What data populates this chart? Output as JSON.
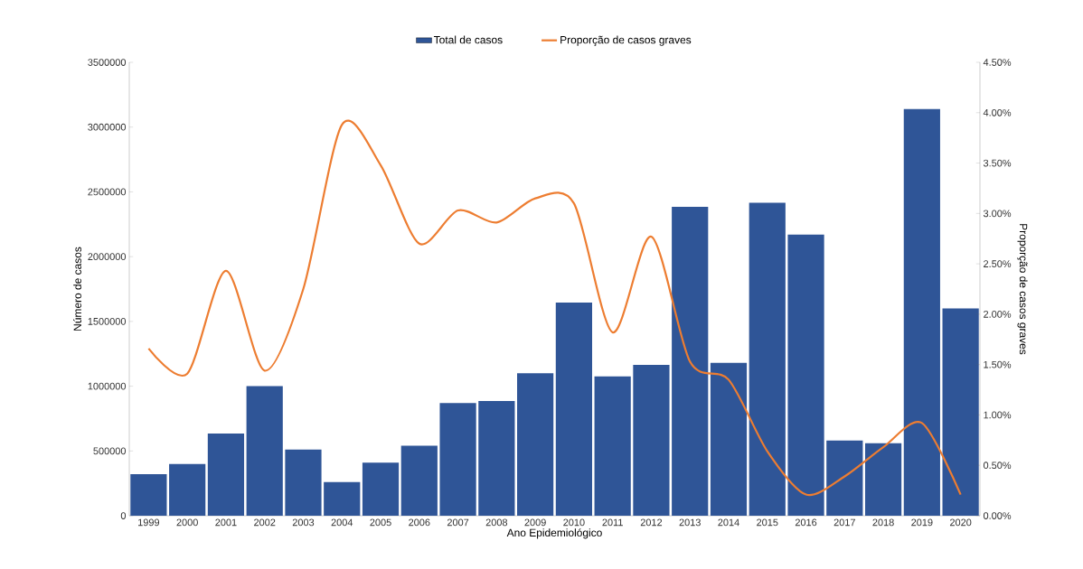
{
  "chart_data": {
    "type": "bar",
    "xlabel": "Ano Epidemiológico",
    "ylabel": "Número de casos",
    "y2label": "Proporção de casos graves",
    "categories": [
      "1999",
      "2000",
      "2001",
      "2002",
      "2003",
      "2004",
      "2005",
      "2006",
      "2007",
      "2008",
      "2009",
      "2010",
      "2011",
      "2012",
      "2013",
      "2014",
      "2015",
      "2016",
      "2017",
      "2018",
      "2019",
      "2020"
    ],
    "series": [
      {
        "name": "Total de casos",
        "color": "#2f5597",
        "values": [
          320000,
          400000,
          635000,
          1000000,
          510000,
          260000,
          410000,
          540000,
          870000,
          885000,
          1100000,
          1645000,
          1075000,
          1165000,
          2385000,
          1180000,
          2415000,
          2170000,
          580000,
          560000,
          3140000,
          1600000
        ]
      },
      {
        "name": "Proporção de casos graves",
        "type": "line",
        "axis": "y2",
        "color": "#ed7d31",
        "values": [
          1.66,
          1.41,
          2.43,
          1.44,
          2.25,
          3.88,
          3.48,
          2.7,
          3.03,
          2.91,
          3.15,
          3.1,
          1.82,
          2.77,
          1.53,
          1.35,
          0.64,
          0.21,
          0.39,
          0.68,
          0.92,
          0.21
        ]
      }
    ],
    "ylim": [
      0,
      3500000
    ],
    "yticks": [
      0,
      500000,
      1000000,
      1500000,
      2000000,
      2500000,
      3000000,
      3500000
    ],
    "y2lim": [
      0,
      4.5
    ],
    "y2ticks": [
      {
        "value": 0,
        "label": "0.00%"
      },
      {
        "value": 0.5,
        "label": "0.50%"
      },
      {
        "value": 1,
        "label": "1.00%"
      },
      {
        "value": 1.5,
        "label": "1.50%"
      },
      {
        "value": 2,
        "label": "2.00%"
      },
      {
        "value": 2.5,
        "label": "2.50%"
      },
      {
        "value": 3,
        "label": "3.00%"
      },
      {
        "value": 3.5,
        "label": "3.50%"
      },
      {
        "value": 4,
        "label": "4.00%"
      },
      {
        "value": 4.5,
        "label": "4.50%"
      }
    ],
    "legend": "top",
    "grid": false
  }
}
